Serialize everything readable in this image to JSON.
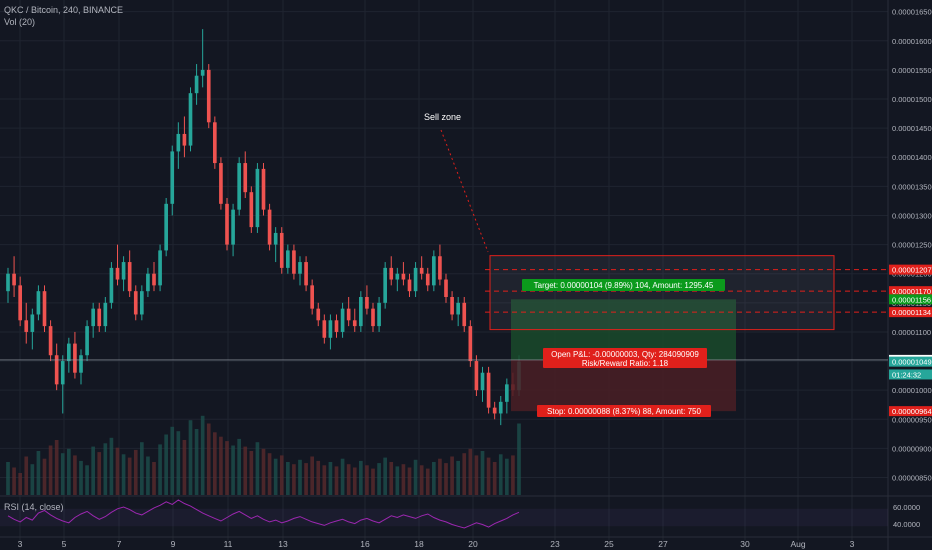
{
  "header": {
    "title": "QKC / Bitcoin, 240, BINANCE",
    "volume": "Vol (20)",
    "rsi": "RSI (14, close)"
  },
  "annotations": {
    "sell_zone": "Sell zone",
    "target": "Target: 0.00000104 (9.89%) 104, Amount: 1295.45",
    "pnl": "Open P&L: -0.00000003, Qty: 284090909",
    "risk_reward": "Risk/Reward Ratio: 1.18",
    "stop": "Stop: 0.00000088 (8.37%) 88, Amount: 750"
  },
  "colors": {
    "background": "#131722",
    "up": "#26a69a",
    "down": "#ef5350",
    "grid": "#1f2430",
    "label_red": "#e0201b",
    "label_green": "#0b9a1c",
    "rsi_line": "#9c27b0"
  },
  "price_labels": {
    "ticks": [
      "0.00001650",
      "0.00001600",
      "0.00001550",
      "0.00001500",
      "0.00001450",
      "0.00001400",
      "0.00001350",
      "0.00001300",
      "0.00001250",
      "0.00001200",
      "0.00001150",
      "0.00001100",
      "0.00001050",
      "0.00001000",
      "0.00000950",
      "0.00000900",
      "0.00000850"
    ],
    "tags": [
      {
        "text": "0.00001207",
        "value": 1.207e-05,
        "color": "#e0201b"
      },
      {
        "text": "0.00001170",
        "value": 1.17e-05,
        "color": "#e0201b"
      },
      {
        "text": "0.00001156",
        "value": 1.156e-05,
        "color": "#0b9a1c"
      },
      {
        "text": "0.00001134",
        "value": 1.134e-05,
        "color": "#e0201b"
      },
      {
        "text": "0.00001052",
        "value": 1.052e-05,
        "color": "#ffffff"
      },
      {
        "text": "0.00001049",
        "value": 1.049e-05,
        "color": "#26a69a"
      },
      {
        "text": "01:24:32",
        "value": 1.027e-05,
        "color": "#26a69a"
      },
      {
        "text": "0.00000964",
        "value": 9.64e-06,
        "color": "#e0201b"
      }
    ],
    "rsi_ticks": [
      "60.0000",
      "40.0000"
    ]
  },
  "date_labels": [
    "3",
    "5",
    "7",
    "9",
    "11",
    "13",
    "16",
    "18",
    "20",
    "23",
    "25",
    "27",
    "30",
    "Aug",
    "3"
  ],
  "chart_data": {
    "type": "candlestick",
    "title": "QKC / Bitcoin, 240, BINANCE",
    "price_ylim": [
      8.2e-06,
      1.67e-05
    ],
    "candles": [
      [
        1.17e-05,
        1.21e-05,
        1.15e-05,
        1.2e-05
      ],
      [
        1.2e-05,
        1.23e-05,
        1.16e-05,
        1.18e-05
      ],
      [
        1.18e-05,
        1.195e-05,
        1.11e-05,
        1.12e-05
      ],
      [
        1.12e-05,
        1.15e-05,
        1.08e-05,
        1.1e-05
      ],
      [
        1.1e-05,
        1.14e-05,
        1.07e-05,
        1.13e-05
      ],
      [
        1.13e-05,
        1.18e-05,
        1.12e-05,
        1.17e-05
      ],
      [
        1.17e-05,
        1.18e-05,
        1.1e-05,
        1.11e-05
      ],
      [
        1.11e-05,
        1.12e-05,
        1.05e-05,
        1.06e-05
      ],
      [
        1.06e-05,
        1.08e-05,
        1e-05,
        1.01e-05
      ],
      [
        1.01e-05,
        1.06e-05,
        9.6e-06,
        1.05e-05
      ],
      [
        1.05e-05,
        1.09e-05,
        1.03e-05,
        1.08e-05
      ],
      [
        1.08e-05,
        1.1e-05,
        1.02e-05,
        1.03e-05
      ],
      [
        1.03e-05,
        1.07e-05,
        1.01e-05,
        1.06e-05
      ],
      [
        1.06e-05,
        1.12e-05,
        1.05e-05,
        1.11e-05
      ],
      [
        1.11e-05,
        1.15e-05,
        1.09e-05,
        1.14e-05
      ],
      [
        1.14e-05,
        1.15e-05,
        1.1e-05,
        1.11e-05
      ],
      [
        1.11e-05,
        1.16e-05,
        1.1e-05,
        1.15e-05
      ],
      [
        1.15e-05,
        1.22e-05,
        1.14e-05,
        1.21e-05
      ],
      [
        1.21e-05,
        1.25e-05,
        1.18e-05,
        1.19e-05
      ],
      [
        1.19e-05,
        1.23e-05,
        1.17e-05,
        1.22e-05
      ],
      [
        1.22e-05,
        1.24e-05,
        1.16e-05,
        1.17e-05
      ],
      [
        1.17e-05,
        1.18e-05,
        1.12e-05,
        1.13e-05
      ],
      [
        1.13e-05,
        1.18e-05,
        1.12e-05,
        1.17e-05
      ],
      [
        1.17e-05,
        1.21e-05,
        1.16e-05,
        1.2e-05
      ],
      [
        1.2e-05,
        1.22e-05,
        1.17e-05,
        1.18e-05
      ],
      [
        1.18e-05,
        1.25e-05,
        1.17e-05,
        1.24e-05
      ],
      [
        1.24e-05,
        1.33e-05,
        1.23e-05,
        1.32e-05
      ],
      [
        1.32e-05,
        1.42e-05,
        1.3e-05,
        1.41e-05
      ],
      [
        1.41e-05,
        1.46e-05,
        1.38e-05,
        1.44e-05
      ],
      [
        1.44e-05,
        1.47e-05,
        1.4e-05,
        1.42e-05
      ],
      [
        1.42e-05,
        1.52e-05,
        1.41e-05,
        1.51e-05
      ],
      [
        1.51e-05,
        1.56e-05,
        1.49e-05,
        1.54e-05
      ],
      [
        1.54e-05,
        1.62e-05,
        1.52e-05,
        1.55e-05
      ],
      [
        1.55e-05,
        1.56e-05,
        1.45e-05,
        1.46e-05
      ],
      [
        1.46e-05,
        1.47e-05,
        1.38e-05,
        1.39e-05
      ],
      [
        1.39e-05,
        1.4e-05,
        1.31e-05,
        1.32e-05
      ],
      [
        1.32e-05,
        1.33e-05,
        1.24e-05,
        1.25e-05
      ],
      [
        1.25e-05,
        1.32e-05,
        1.23e-05,
        1.31e-05
      ],
      [
        1.31e-05,
        1.4e-05,
        1.3e-05,
        1.39e-05
      ],
      [
        1.39e-05,
        1.41e-05,
        1.33e-05,
        1.34e-05
      ],
      [
        1.34e-05,
        1.35e-05,
        1.27e-05,
        1.28e-05
      ],
      [
        1.28e-05,
        1.39e-05,
        1.27e-05,
        1.38e-05
      ],
      [
        1.38e-05,
        1.39e-05,
        1.3e-05,
        1.31e-05
      ],
      [
        1.31e-05,
        1.32e-05,
        1.24e-05,
        1.25e-05
      ],
      [
        1.25e-05,
        1.28e-05,
        1.22e-05,
        1.27e-05
      ],
      [
        1.27e-05,
        1.28e-05,
        1.2e-05,
        1.21e-05
      ],
      [
        1.21e-05,
        1.25e-05,
        1.2e-05,
        1.24e-05
      ],
      [
        1.24e-05,
        1.25e-05,
        1.19e-05,
        1.2e-05
      ],
      [
        1.2e-05,
        1.23e-05,
        1.18e-05,
        1.22e-05
      ],
      [
        1.22e-05,
        1.23e-05,
        1.17e-05,
        1.18e-05
      ],
      [
        1.18e-05,
        1.19e-05,
        1.13e-05,
        1.14e-05
      ],
      [
        1.14e-05,
        1.15e-05,
        1.11e-05,
        1.12e-05
      ],
      [
        1.12e-05,
        1.13e-05,
        1.08e-05,
        1.09e-05
      ],
      [
        1.09e-05,
        1.13e-05,
        1.07e-05,
        1.12e-05
      ],
      [
        1.12e-05,
        1.13e-05,
        1.09e-05,
        1.1e-05
      ],
      [
        1.1e-05,
        1.15e-05,
        1.09e-05,
        1.14e-05
      ],
      [
        1.14e-05,
        1.16e-05,
        1.11e-05,
        1.12e-05
      ],
      [
        1.12e-05,
        1.14e-05,
        1.1e-05,
        1.11e-05
      ],
      [
        1.11e-05,
        1.17e-05,
        1.1e-05,
        1.16e-05
      ],
      [
        1.16e-05,
        1.18e-05,
        1.13e-05,
        1.14e-05
      ],
      [
        1.14e-05,
        1.15e-05,
        1.1e-05,
        1.11e-05
      ],
      [
        1.11e-05,
        1.16e-05,
        1.1e-05,
        1.15e-05
      ],
      [
        1.15e-05,
        1.22e-05,
        1.14e-05,
        1.21e-05
      ],
      [
        1.21e-05,
        1.23e-05,
        1.18e-05,
        1.19e-05
      ],
      [
        1.19e-05,
        1.21e-05,
        1.17e-05,
        1.2e-05
      ],
      [
        1.2e-05,
        1.22e-05,
        1.18e-05,
        1.19e-05
      ],
      [
        1.19e-05,
        1.2e-05,
        1.16e-05,
        1.17e-05
      ],
      [
        1.17e-05,
        1.22e-05,
        1.16e-05,
        1.21e-05
      ],
      [
        1.21e-05,
        1.23e-05,
        1.19e-05,
        1.2e-05
      ],
      [
        1.2e-05,
        1.21e-05,
        1.17e-05,
        1.18e-05
      ],
      [
        1.18e-05,
        1.24e-05,
        1.17e-05,
        1.23e-05
      ],
      [
        1.23e-05,
        1.25e-05,
        1.18e-05,
        1.19e-05
      ],
      [
        1.19e-05,
        1.2e-05,
        1.15e-05,
        1.16e-05
      ],
      [
        1.16e-05,
        1.17e-05,
        1.12e-05,
        1.13e-05
      ],
      [
        1.13e-05,
        1.16e-05,
        1.11e-05,
        1.15e-05
      ],
      [
        1.15e-05,
        1.16e-05,
        1.1e-05,
        1.11e-05
      ],
      [
        1.11e-05,
        1.12e-05,
        1.04e-05,
        1.05e-05
      ],
      [
        1.05e-05,
        1.06e-05,
        9.9e-06,
        1e-05
      ],
      [
        1e-05,
        1.04e-05,
        9.8e-06,
        1.03e-05
      ],
      [
        1.03e-05,
        1.04e-05,
        9.6e-06,
        9.7e-06
      ],
      [
        9.7e-06,
        9.8e-06,
        9.5e-06,
        9.6e-06
      ],
      [
        9.6e-06,
        9.9e-06,
        9.4e-06,
        9.8e-06
      ],
      [
        9.8e-06,
        1.02e-05,
        9.6e-06,
        1.01e-05
      ],
      [
        1.01e-05,
        1.03e-05,
        9.9e-06,
        1e-05
      ],
      [
        1e-05,
        1.06e-05,
        9.9e-06,
        1.049e-05
      ]
    ],
    "volumes": [
      0.3,
      0.25,
      0.2,
      0.35,
      0.28,
      0.4,
      0.33,
      0.45,
      0.5,
      0.38,
      0.42,
      0.36,
      0.31,
      0.27,
      0.44,
      0.39,
      0.47,
      0.52,
      0.43,
      0.37,
      0.34,
      0.41,
      0.48,
      0.35,
      0.3,
      0.46,
      0.55,
      0.62,
      0.58,
      0.5,
      0.68,
      0.6,
      0.72,
      0.65,
      0.57,
      0.53,
      0.49,
      0.45,
      0.51,
      0.44,
      0.4,
      0.48,
      0.42,
      0.38,
      0.33,
      0.36,
      0.3,
      0.28,
      0.32,
      0.29,
      0.35,
      0.31,
      0.27,
      0.3,
      0.26,
      0.33,
      0.28,
      0.25,
      0.31,
      0.27,
      0.24,
      0.29,
      0.34,
      0.3,
      0.26,
      0.28,
      0.25,
      0.32,
      0.27,
      0.24,
      0.3,
      0.33,
      0.29,
      0.35,
      0.31,
      0.38,
      0.42,
      0.36,
      0.4,
      0.34,
      0.3,
      0.37,
      0.33,
      0.36,
      0.65
    ],
    "rsi": [
      52,
      48,
      45,
      50,
      47,
      55,
      58,
      53,
      49,
      46,
      44,
      50,
      54,
      57,
      52,
      48,
      51,
      56,
      60,
      62,
      59,
      55,
      53,
      57,
      61,
      64,
      68,
      65,
      70,
      66,
      63,
      59,
      55,
      52,
      49,
      46,
      50,
      54,
      57,
      53,
      49,
      52,
      48,
      45,
      47,
      44,
      46,
      49,
      51,
      48,
      45,
      43,
      41,
      44,
      46,
      48,
      45,
      43,
      47,
      49,
      46,
      44,
      48,
      52,
      50,
      53,
      51,
      49,
      52,
      54,
      50,
      47,
      45,
      42,
      40,
      38,
      41,
      44,
      42,
      39,
      43,
      46,
      49,
      53,
      56
    ],
    "position": {
      "entry": 1.052e-05,
      "target": 1.156e-05,
      "stop": 9.64e-06
    },
    "sell_zone": {
      "top": 1.231e-05,
      "bottom": 1.104e-05,
      "lines": [
        1.207e-05,
        1.17e-05,
        1.134e-05
      ]
    }
  }
}
